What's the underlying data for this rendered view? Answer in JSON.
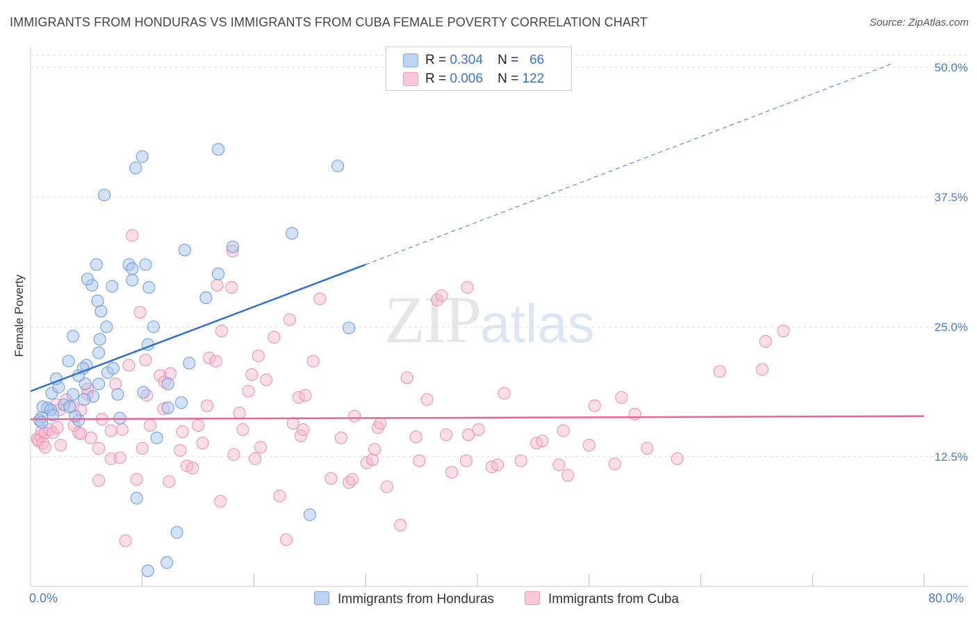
{
  "title": "IMMIGRANTS FROM HONDURAS VS IMMIGRANTS FROM CUBA FEMALE POVERTY CORRELATION CHART",
  "source": "Source: ZipAtlas.com",
  "watermark": {
    "zip": "ZIP",
    "atlas": "atlas"
  },
  "legend": {
    "honduras": {
      "r_label": "R =",
      "r_value": "0.304",
      "n_label": "N =",
      "n_value": "66"
    },
    "cuba": {
      "r_label": "R =",
      "r_value": "0.006",
      "n_label": "N =",
      "n_value": "122"
    }
  },
  "colors": {
    "honduras_fill": "#a9c6f0",
    "honduras_stroke": "#6f9fdc",
    "honduras_line": "#2e6fd0",
    "cuba_fill": "#f6b9cc",
    "cuba_stroke": "#ec93b0",
    "cuba_line": "#e7658f",
    "tick": "#4a7cc7",
    "grid": "#dddddd"
  },
  "chart_data": {
    "type": "scatter",
    "title": "IMMIGRANTS FROM HONDURAS VS IMMIGRANTS FROM CUBA FEMALE POVERTY CORRELATION CHART",
    "xlabel": "",
    "ylabel": "Female Poverty",
    "xlim": [
      0,
      80
    ],
    "ylim": [
      0,
      50
    ],
    "x_ticks": [
      "0.0%",
      "80.0%"
    ],
    "y_ticks": [
      {
        "value": 12.5,
        "label": "12.5%"
      },
      {
        "value": 25.0,
        "label": "25.0%"
      },
      {
        "value": 37.5,
        "label": "37.5%"
      },
      {
        "value": 50.0,
        "label": "50.0%"
      }
    ],
    "grid": true,
    "legend_position": "top-center",
    "series": [
      {
        "name": "Immigrants from Honduras",
        "r": 0.304,
        "n": 66,
        "trend": {
          "x0": 0,
          "y0": 18.8,
          "x1": 30,
          "y1": 31.0,
          "dashed_to_x": 77,
          "dashed_to_y": 50.3
        },
        "points": [
          [
            1.0,
            16.3
          ],
          [
            0.8,
            16.0
          ],
          [
            1.0,
            15.8
          ],
          [
            1.5,
            17.2
          ],
          [
            1.1,
            17.3
          ],
          [
            1.8,
            17.0
          ],
          [
            2.0,
            16.5
          ],
          [
            1.9,
            18.6
          ],
          [
            2.5,
            19.2
          ],
          [
            3.0,
            17.5
          ],
          [
            2.3,
            20.0
          ],
          [
            3.8,
            18.5
          ],
          [
            4.3,
            16.0
          ],
          [
            4.0,
            16.4
          ],
          [
            4.9,
            19.5
          ],
          [
            5.6,
            18.3
          ],
          [
            4.8,
            18.0
          ],
          [
            3.5,
            17.3
          ],
          [
            6.1,
            19.5
          ],
          [
            6.9,
            20.6
          ],
          [
            7.8,
            18.5
          ],
          [
            8.0,
            16.2
          ],
          [
            7.4,
            21.0
          ],
          [
            6.1,
            22.5
          ],
          [
            5.0,
            21.3
          ],
          [
            4.7,
            21.0
          ],
          [
            4.3,
            20.3
          ],
          [
            3.4,
            21.7
          ],
          [
            3.8,
            24.1
          ],
          [
            6.2,
            23.8
          ],
          [
            6.3,
            26.5
          ],
          [
            6.8,
            25.0
          ],
          [
            5.5,
            29.0
          ],
          [
            7.3,
            28.9
          ],
          [
            6.0,
            27.5
          ],
          [
            5.1,
            29.6
          ],
          [
            5.9,
            31.0
          ],
          [
            6.6,
            37.7
          ],
          [
            8.8,
            31.0
          ],
          [
            9.1,
            30.6
          ],
          [
            9.1,
            29.5
          ],
          [
            10.6,
            28.8
          ],
          [
            10.3,
            31.0
          ],
          [
            10.5,
            23.3
          ],
          [
            11.0,
            25.0
          ],
          [
            10.1,
            18.7
          ],
          [
            11.3,
            14.3
          ],
          [
            12.3,
            19.5
          ],
          [
            12.3,
            17.2
          ],
          [
            13.5,
            17.7
          ],
          [
            14.2,
            21.5
          ],
          [
            13.8,
            32.4
          ],
          [
            15.7,
            27.8
          ],
          [
            16.8,
            30.1
          ],
          [
            18.1,
            32.7
          ],
          [
            16.8,
            42.1
          ],
          [
            23.4,
            34.0
          ],
          [
            27.5,
            40.5
          ],
          [
            28.5,
            24.9
          ],
          [
            10.0,
            41.4
          ],
          [
            9.4,
            40.3
          ],
          [
            9.5,
            8.5
          ],
          [
            10.5,
            1.5
          ],
          [
            12.2,
            2.3
          ],
          [
            13.1,
            5.2
          ],
          [
            25.0,
            6.9
          ]
        ]
      },
      {
        "name": "Immigrants from Cuba",
        "r": 0.006,
        "n": 122,
        "trend": {
          "x0": 0,
          "y0": 16.1,
          "x1": 80,
          "y1": 16.4
        },
        "points": [
          [
            0.6,
            14.2
          ],
          [
            0.7,
            14.0
          ],
          [
            0.9,
            14.5
          ],
          [
            1.1,
            13.8
          ],
          [
            1.3,
            13.4
          ],
          [
            1.0,
            15.0
          ],
          [
            1.3,
            14.8
          ],
          [
            1.7,
            15.1
          ],
          [
            2.0,
            14.8
          ],
          [
            2.4,
            15.3
          ],
          [
            2.3,
            17.5
          ],
          [
            2.6,
            17.0
          ],
          [
            2.7,
            13.6
          ],
          [
            3.2,
            18.0
          ],
          [
            3.8,
            17.3
          ],
          [
            3.9,
            15.5
          ],
          [
            4.5,
            17.0
          ],
          [
            4.3,
            14.8
          ],
          [
            4.5,
            14.7
          ],
          [
            5.1,
            18.5
          ],
          [
            5.1,
            19.0
          ],
          [
            5.4,
            14.3
          ],
          [
            6.1,
            13.3
          ],
          [
            6.1,
            10.2
          ],
          [
            6.4,
            16.1
          ],
          [
            7.2,
            15.0
          ],
          [
            7.6,
            19.5
          ],
          [
            7.2,
            12.3
          ],
          [
            8.0,
            12.4
          ],
          [
            8.2,
            15.1
          ],
          [
            8.5,
            4.4
          ],
          [
            8.8,
            21.3
          ],
          [
            9.1,
            33.8
          ],
          [
            9.5,
            10.3
          ],
          [
            9.8,
            26.4
          ],
          [
            10.0,
            13.3
          ],
          [
            10.3,
            21.8
          ],
          [
            10.4,
            18.4
          ],
          [
            10.7,
            15.5
          ],
          [
            11.6,
            20.3
          ],
          [
            11.9,
            17.1
          ],
          [
            12.0,
            19.7
          ],
          [
            12.4,
            10.1
          ],
          [
            12.5,
            20.5
          ],
          [
            13.4,
            13.1
          ],
          [
            13.6,
            14.9
          ],
          [
            14.0,
            11.6
          ],
          [
            14.5,
            11.4
          ],
          [
            15.0,
            15.5
          ],
          [
            15.4,
            13.8
          ],
          [
            15.8,
            17.4
          ],
          [
            16.0,
            22.0
          ],
          [
            16.6,
            21.7
          ],
          [
            16.7,
            29.0
          ],
          [
            17.1,
            24.6
          ],
          [
            17.0,
            8.2
          ],
          [
            18.0,
            28.8
          ],
          [
            18.1,
            32.3
          ],
          [
            18.2,
            12.7
          ],
          [
            18.7,
            16.7
          ],
          [
            19.0,
            15.1
          ],
          [
            19.5,
            18.8
          ],
          [
            19.8,
            20.4
          ],
          [
            20.1,
            12.3
          ],
          [
            20.6,
            13.4
          ],
          [
            20.4,
            22.2
          ],
          [
            21.1,
            19.9
          ],
          [
            21.8,
            24.0
          ],
          [
            22.3,
            8.7
          ],
          [
            22.9,
            4.5
          ],
          [
            23.2,
            25.7
          ],
          [
            23.5,
            15.7
          ],
          [
            24.0,
            18.2
          ],
          [
            24.2,
            14.5
          ],
          [
            24.4,
            15.1
          ],
          [
            24.6,
            18.4
          ],
          [
            25.3,
            21.7
          ],
          [
            25.9,
            27.7
          ],
          [
            26.9,
            10.4
          ],
          [
            27.8,
            14.3
          ],
          [
            28.5,
            10.0
          ],
          [
            28.8,
            10.3
          ],
          [
            29.0,
            16.4
          ],
          [
            30.1,
            11.9
          ],
          [
            30.6,
            12.2
          ],
          [
            30.8,
            13.2
          ],
          [
            31.1,
            15.3
          ],
          [
            31.3,
            15.7
          ],
          [
            31.9,
            9.6
          ],
          [
            33.1,
            5.9
          ],
          [
            33.7,
            20.1
          ],
          [
            34.5,
            14.4
          ],
          [
            34.8,
            12.1
          ],
          [
            35.5,
            18.0
          ],
          [
            36.4,
            27.6
          ],
          [
            36.8,
            28.0
          ],
          [
            37.2,
            14.6
          ],
          [
            37.7,
            11.0
          ],
          [
            39.0,
            12.1
          ],
          [
            39.1,
            28.8
          ],
          [
            39.2,
            14.6
          ],
          [
            40.1,
            15.1
          ],
          [
            41.3,
            11.5
          ],
          [
            41.8,
            11.7
          ],
          [
            42.4,
            18.6
          ],
          [
            43.9,
            12.1
          ],
          [
            45.3,
            13.8
          ],
          [
            45.8,
            14.0
          ],
          [
            47.3,
            11.7
          ],
          [
            47.7,
            15.0
          ],
          [
            48.1,
            10.7
          ],
          [
            50.0,
            13.6
          ],
          [
            50.5,
            17.4
          ],
          [
            52.3,
            11.8
          ],
          [
            52.9,
            18.2
          ],
          [
            54.1,
            16.6
          ],
          [
            55.2,
            13.3
          ],
          [
            57.9,
            12.3
          ],
          [
            61.7,
            20.7
          ],
          [
            65.5,
            20.9
          ],
          [
            65.8,
            23.6
          ],
          [
            67.4,
            24.6
          ]
        ]
      }
    ]
  },
  "bottom_legend": {
    "honduras": "Immigrants from Honduras",
    "cuba": "Immigrants from Cuba"
  }
}
